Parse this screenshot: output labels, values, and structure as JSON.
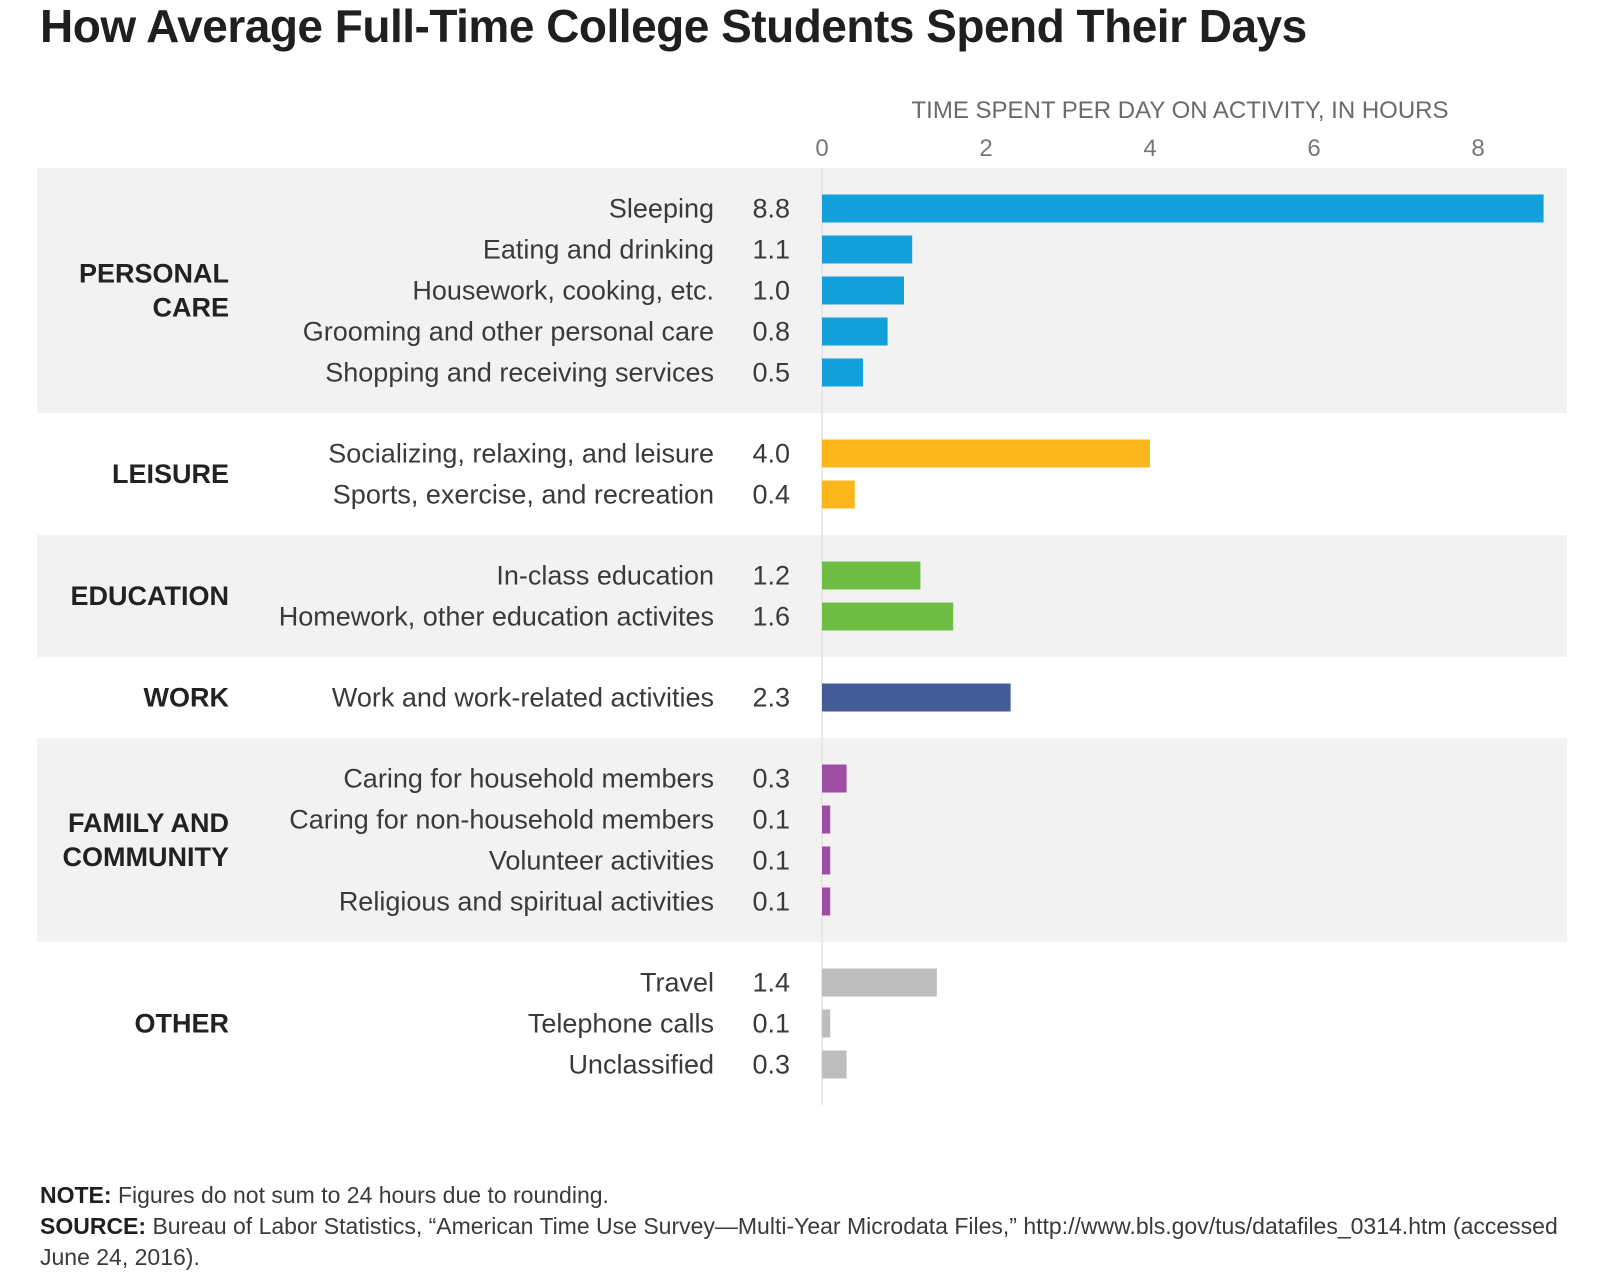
{
  "title": "How Average Full-Time College Students Spend Their Days",
  "chart_data": {
    "type": "bar",
    "orientation": "horizontal",
    "xlabel": "TIME SPENT PER DAY ON ACTIVITY, IN HOURS",
    "xlim": [
      0,
      9
    ],
    "xticks": [
      0,
      2,
      4,
      6,
      8
    ],
    "groups": [
      {
        "name": "PERSONAL CARE",
        "label_lines": [
          "PERSONAL",
          "CARE"
        ],
        "color": "#14a0db",
        "shaded": true,
        "items": [
          {
            "label": "Sleeping",
            "value": 8.8,
            "value_label": "8.8"
          },
          {
            "label": "Eating and drinking",
            "value": 1.1,
            "value_label": "1.1"
          },
          {
            "label": "Housework, cooking, etc.",
            "value": 1.0,
            "value_label": "1.0"
          },
          {
            "label": "Grooming and other personal care",
            "value": 0.8,
            "value_label": "0.8"
          },
          {
            "label": "Shopping and receiving services",
            "value": 0.5,
            "value_label": "0.5"
          }
        ]
      },
      {
        "name": "LEISURE",
        "label_lines": [
          "LEISURE"
        ],
        "color": "#fbb71c",
        "shaded": false,
        "items": [
          {
            "label": "Socializing, relaxing, and leisure",
            "value": 4.0,
            "value_label": "4.0"
          },
          {
            "label": "Sports, exercise, and recreation",
            "value": 0.4,
            "value_label": "0.4"
          }
        ]
      },
      {
        "name": "EDUCATION",
        "label_lines": [
          "EDUCATION"
        ],
        "color": "#6fbe44",
        "shaded": true,
        "items": [
          {
            "label": "In-class education",
            "value": 1.2,
            "value_label": "1.2"
          },
          {
            "label": "Homework, other education activites",
            "value": 1.6,
            "value_label": "1.6"
          }
        ]
      },
      {
        "name": "WORK",
        "label_lines": [
          "WORK"
        ],
        "color": "#435c97",
        "shaded": false,
        "items": [
          {
            "label": "Work and work-related activities",
            "value": 2.3,
            "value_label": "2.3"
          }
        ]
      },
      {
        "name": "FAMILY AND COMMUNITY",
        "label_lines": [
          "FAMILY AND",
          "COMMUNITY"
        ],
        "color": "#9d4ea4",
        "shaded": true,
        "items": [
          {
            "label": "Caring for household members",
            "value": 0.3,
            "value_label": "0.3"
          },
          {
            "label": "Caring for non-household members",
            "value": 0.1,
            "value_label": "0.1"
          },
          {
            "label": "Volunteer activities",
            "value": 0.1,
            "value_label": "0.1"
          },
          {
            "label": "Religious and spiritual activities",
            "value": 0.1,
            "value_label": "0.1"
          }
        ]
      },
      {
        "name": "OTHER",
        "label_lines": [
          "OTHER"
        ],
        "color": "#bdbdbd",
        "shaded": false,
        "items": [
          {
            "label": "Travel",
            "value": 1.4,
            "value_label": "1.4"
          },
          {
            "label": "Telephone calls",
            "value": 0.1,
            "value_label": "0.1"
          },
          {
            "label": "Unclassified",
            "value": 0.3,
            "value_label": "0.3"
          }
        ]
      }
    ]
  },
  "note": {
    "note_label": "NOTE:",
    "note_text": " Figures do not sum to 24 hours due to rounding.",
    "source_label": "SOURCE:",
    "source_text": " Bureau of Labor Statistics, “American Time Use Survey—Multi-Year Microdata Files,” http://www.bls.gov/tus/datafiles_0314.htm (accessed June 24, 2016)."
  }
}
